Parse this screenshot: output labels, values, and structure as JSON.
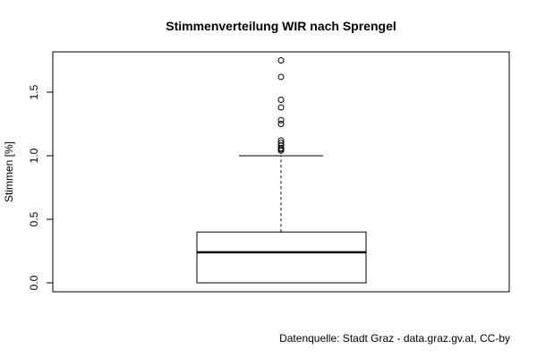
{
  "chart_data": {
    "type": "boxplot",
    "title": "Stimmenverteilung WIR nach Sprengel",
    "ylabel": "Stimmen [%]",
    "xlabel": "",
    "ylim": [
      -0.05,
      1.8
    ],
    "yticks": [
      0.0,
      0.5,
      1.0,
      1.5
    ],
    "ytick_labels": [
      "0.0",
      "0.5",
      "1.0",
      "1.5"
    ],
    "box": {
      "min": 0.0,
      "q1": 0.0,
      "median": 0.24,
      "q3": 0.4,
      "whisker_low": 0.0,
      "whisker_high": 1.0
    },
    "outliers": [
      1.04,
      1.05,
      1.06,
      1.08,
      1.1,
      1.12,
      1.25,
      1.28,
      1.38,
      1.44,
      1.62,
      1.75
    ],
    "grid": false
  },
  "footer": {
    "source": "Datenquelle: Stadt Graz - data.graz.gv.at, CC-by"
  }
}
